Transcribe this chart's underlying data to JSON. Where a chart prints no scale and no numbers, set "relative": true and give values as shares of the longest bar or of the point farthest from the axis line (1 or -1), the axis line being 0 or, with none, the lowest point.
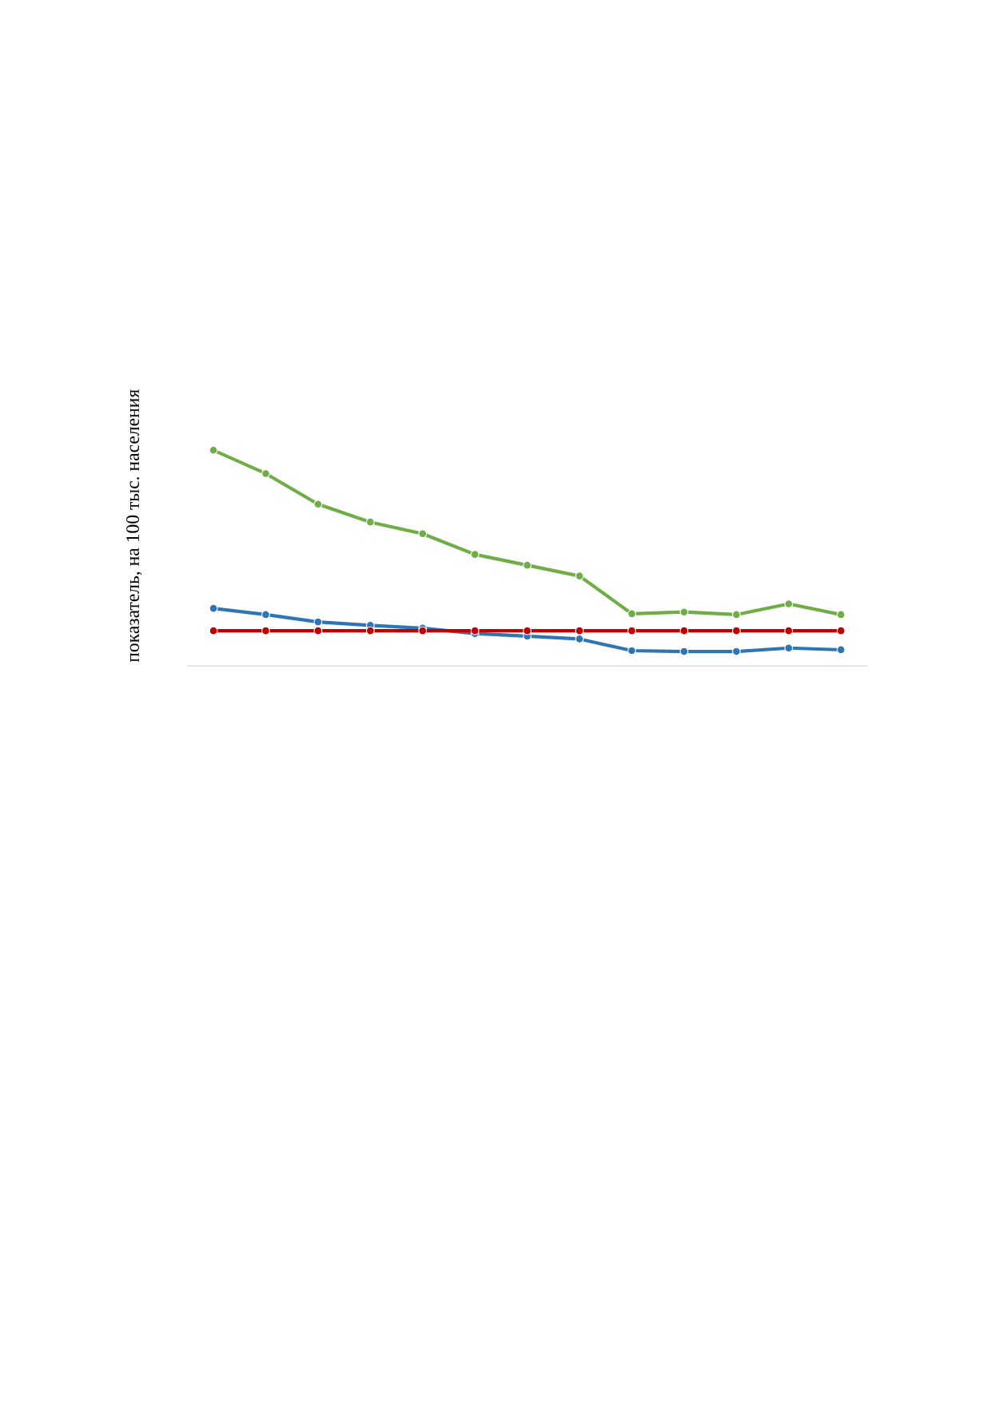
{
  "chart_data": {
    "type": "line",
    "relative": true,
    "ylabel": "показатель, на 100 тыс. населения",
    "marker": "circle",
    "line_style": "solid",
    "categories": [
      null,
      null,
      null,
      null,
      null,
      null,
      null,
      null,
      null,
      null,
      null,
      null,
      null
    ],
    "series": [
      {
        "color": "#c00000",
        "values": [
          0.163,
          0.163,
          0.163,
          0.163,
          0.163,
          0.163,
          0.163,
          0.163,
          0.163,
          0.163,
          0.163,
          0.163,
          0.163
        ]
      },
      {
        "color": "#2e75b6",
        "values": [
          0.267,
          0.238,
          0.204,
          0.188,
          0.175,
          0.15,
          0.138,
          0.125,
          0.071,
          0.067,
          0.067,
          0.083,
          0.075
        ]
      },
      {
        "color": "#70ad47",
        "values": [
          1,
          0.892,
          0.75,
          0.667,
          0.613,
          0.517,
          0.467,
          0.417,
          0.242,
          0.25,
          0.238,
          0.288,
          0.238
        ]
      }
    ]
  }
}
